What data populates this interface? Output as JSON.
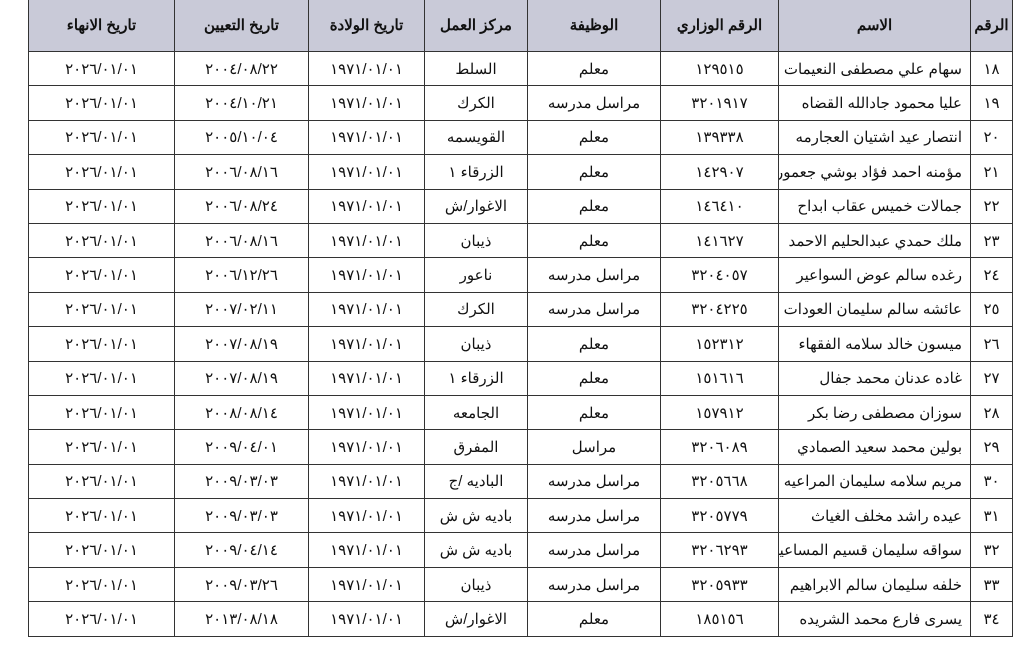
{
  "headers": [
    "الرقم",
    "الاسم",
    "الرقم الوزاري",
    "الوظيفة",
    "مركز العمل",
    "تاريخ الولادة",
    "تاريخ التعيين",
    "تاريخ الانهاء"
  ],
  "rows": [
    [
      "١٨",
      "سهام علي مصطفى النعيمات",
      "١٢٩٥١٥",
      "معلم",
      "السلط",
      "١٩٧١/٠١/٠١",
      "٢٠٠٤/٠٨/٢٢",
      "٢٠٢٦/٠١/٠١"
    ],
    [
      "١٩",
      "عليا محمود جادالله القضاه",
      "٣٢٠١٩١٧",
      "مراسل مدرسه",
      "الكرك",
      "١٩٧١/٠١/٠١",
      "٢٠٠٤/١٠/٢١",
      "٢٠٢٦/٠١/٠١"
    ],
    [
      "٢٠",
      "انتصار عيد اشتيان العجارمه",
      "١٣٩٣٣٨",
      "معلم",
      "القويسمه",
      "١٩٧١/٠١/٠١",
      "٢٠٠٥/١٠/٠٤",
      "٢٠٢٦/٠١/٠١"
    ],
    [
      "٢١",
      "مؤمنه احمد فؤاد بوشي جعمور",
      "١٤٢٩٠٧",
      "معلم",
      "الزرقاء ١",
      "١٩٧١/٠١/٠١",
      "٢٠٠٦/٠٨/١٦",
      "٢٠٢٦/٠١/٠١"
    ],
    [
      "٢٢",
      "جمالات خميس عقاب ابداح",
      "١٤٦٤١٠",
      "معلم",
      "الاغوار/ش",
      "١٩٧١/٠١/٠١",
      "٢٠٠٦/٠٨/٢٤",
      "٢٠٢٦/٠١/٠١"
    ],
    [
      "٢٣",
      "ملك حمدي عبدالحليم الاحمد",
      "١٤١٦٢٧",
      "معلم",
      "ذيبان",
      "١٩٧١/٠١/٠١",
      "٢٠٠٦/٠٨/١٦",
      "٢٠٢٦/٠١/٠١"
    ],
    [
      "٢٤",
      "رغده سالم عوض السواعير",
      "٣٢٠٤٠٥٧",
      "مراسل مدرسه",
      "ناعور",
      "١٩٧١/٠١/٠١",
      "٢٠٠٦/١٢/٢٦",
      "٢٠٢٦/٠١/٠١"
    ],
    [
      "٢٥",
      "عائشه سالم سليمان العودات",
      "٣٢٠٤٢٢٥",
      "مراسل مدرسه",
      "الكرك",
      "١٩٧١/٠١/٠١",
      "٢٠٠٧/٠٢/١١",
      "٢٠٢٦/٠١/٠١"
    ],
    [
      "٢٦",
      "ميسون خالد سلامه الفقهاء",
      "١٥٢٣١٢",
      "معلم",
      "ذيبان",
      "١٩٧١/٠١/٠١",
      "٢٠٠٧/٠٨/١٩",
      "٢٠٢٦/٠١/٠١"
    ],
    [
      "٢٧",
      "غاده عدنان محمد جفال",
      "١٥١٦١٦",
      "معلم",
      "الزرقاء ١",
      "١٩٧١/٠١/٠١",
      "٢٠٠٧/٠٨/١٩",
      "٢٠٢٦/٠١/٠١"
    ],
    [
      "٢٨",
      "سوزان مصطفى رضا بكر",
      "١٥٧٩١٢",
      "معلم",
      "الجامعه",
      "١٩٧١/٠١/٠١",
      "٢٠٠٨/٠٨/١٤",
      "٢٠٢٦/٠١/٠١"
    ],
    [
      "٢٩",
      "بولين محمد سعيد الصمادي",
      "٣٢٠٦٠٨٩",
      "مراسل",
      "المفرق",
      "١٩٧١/٠١/٠١",
      "٢٠٠٩/٠٤/٠١",
      "٢٠٢٦/٠١/٠١"
    ],
    [
      "٣٠",
      "مريم سلامه سليمان المراعيه",
      "٣٢٠٥٦٦٨",
      "مراسل مدرسه",
      "الباديه /ج",
      "١٩٧١/٠١/٠١",
      "٢٠٠٩/٠٣/٠٣",
      "٢٠٢٦/٠١/٠١"
    ],
    [
      "٣١",
      "عيده راشد مخلف الغياث",
      "٣٢٠٥٧٧٩",
      "مراسل مدرسه",
      "باديه ش ش",
      "١٩٧١/٠١/٠١",
      "٢٠٠٩/٠٣/٠٣",
      "٢٠٢٦/٠١/٠١"
    ],
    [
      "٣٢",
      "سواقه سليمان قسيم المساعيد",
      "٣٢٠٦٢٩٣",
      "مراسل مدرسه",
      "باديه ش ش",
      "١٩٧١/٠١/٠١",
      "٢٠٠٩/٠٤/١٤",
      "٢٠٢٦/٠١/٠١"
    ],
    [
      "٣٣",
      "خلفه سليمان سالم الابراهيم",
      "٣٢٠٥٩٣٣",
      "مراسل مدرسه",
      "ذيبان",
      "١٩٧١/٠١/٠١",
      "٢٠٠٩/٠٣/٢٦",
      "٢٠٢٦/٠١/٠١"
    ],
    [
      "٣٤",
      "يسرى فارع محمد الشريده",
      "١٨٥١٥٦",
      "معلم",
      "الاغوار/ش",
      "١٩٧١/٠١/٠١",
      "٢٠١٣/٠٨/١٨",
      "٢٠٢٦/٠١/٠١"
    ]
  ]
}
